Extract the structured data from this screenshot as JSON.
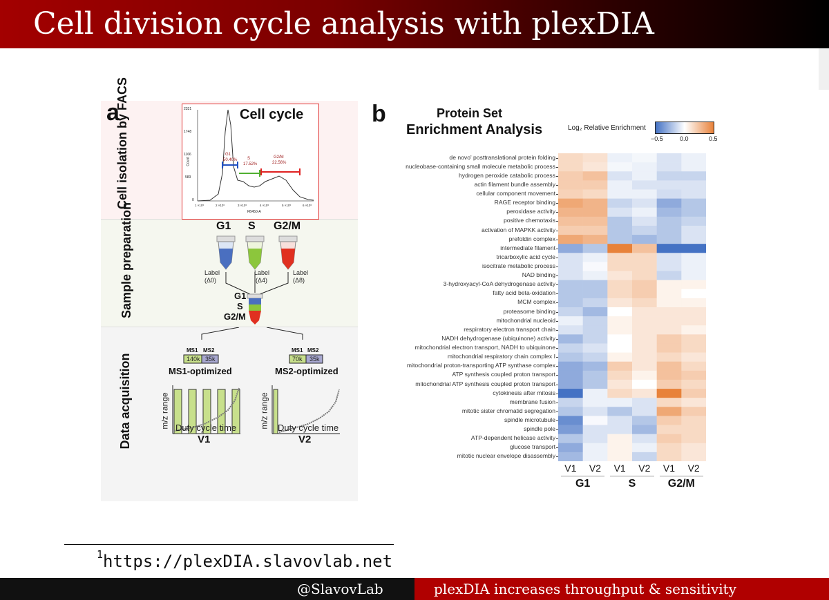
{
  "slide": {
    "title": "Cell division cycle analysis with plexDIA",
    "footnote_marker": "1",
    "footnote": "https://plexDIA.slavovlab.net",
    "footer_left": "@SlavovLab",
    "footer_right": "plexDIA increases throughput & sensitivity"
  },
  "panel_a": {
    "letter": "a",
    "sections": [
      "Cell isolation by FACS",
      "Sample preparation",
      "Data acquisition"
    ],
    "facs": {
      "title": "Cell cycle",
      "y_ticks": [
        "2331",
        "1748",
        "1166",
        "583",
        "0"
      ],
      "x_ticks": [
        "1 ×10⁵",
        "2 ×10⁵",
        "3 ×10⁵",
        "4 ×10⁵",
        "5 ×10⁵",
        "6 ×10⁵"
      ],
      "y_label": "Count",
      "x_label": "FB450-A",
      "gates": [
        {
          "name": "G1",
          "pct": "50.40%"
        },
        {
          "name": "S",
          "pct": "17.52%"
        },
        {
          "name": "G2/M",
          "pct": "22.56%"
        }
      ]
    },
    "prep": {
      "phases": [
        "G1",
        "S",
        "G2/M"
      ],
      "labels": [
        {
          "text": "Label",
          "delta": "(Δ0)"
        },
        {
          "text": "Label",
          "delta": "(Δ4)"
        },
        {
          "text": "Label",
          "delta": "(Δ8)"
        }
      ],
      "pooled": [
        "G1",
        "S",
        "G2/M"
      ]
    },
    "acq": [
      {
        "ms1": "MS1",
        "ms2": "MS2",
        "ms1_res": "140k",
        "ms2_res": "35k",
        "name": "MS1-optimized",
        "ylabel": "m/z range",
        "xlabel": "Duty cycle time",
        "version": "V1"
      },
      {
        "ms1": "MS1",
        "ms2": "MS2",
        "ms1_res": "70k",
        "ms2_res": "35k",
        "name": "MS2-optimized",
        "ylabel": "m/z range",
        "xlabel": "Duty cycle time",
        "version": "V2"
      }
    ]
  },
  "panel_b": {
    "letter": "b",
    "title_line1": "Protein Set",
    "title_line2": "Enrichment Analysis",
    "legend_title": "Log₂ Relative Enrichment",
    "legend_ticks": [
      "−0.5",
      "0.0",
      "0.5"
    ]
  },
  "colors": {
    "blue": "#4472c4",
    "white": "#ffffff",
    "orange": "#e8823a",
    "green": "#9ccc3c",
    "red": "#e03020"
  },
  "chart_data": {
    "type": "heatmap",
    "title": "Protein Set Enrichment Analysis",
    "legend": "Log2 Relative Enrichment",
    "range": [
      -0.5,
      0.5
    ],
    "columns": [
      "V1",
      "V2",
      "V1",
      "V2",
      "V1",
      "V2"
    ],
    "groups": [
      "G1",
      "S",
      "G2/M"
    ],
    "rows": [
      "de novo' posttranslational protein folding",
      "nucleobase-containing small molecule metabolic process",
      "hydrogen peroxide catabolic process",
      "actin filament bundle assembly",
      "cellular component movement",
      "RAGE receptor binding",
      "peroxidase activity",
      "positive chemotaxis",
      "activation of MAPKK activity",
      "prefoldin complex",
      "intermediate filament",
      "tricarboxylic acid cycle",
      "isocitrate metabolic process",
      "NAD binding",
      "3-hydroxyacyl-CoA dehydrogenase activity",
      "fatty acid beta-oxidation",
      "MCM complex",
      "proteasome binding",
      "mitochondrial nucleoid",
      "respiratory electron transport chain",
      "NADH dehydrogenase (ubiquinone) activity",
      "mitochondrial electron transport, NADH to ubiquinone",
      "mitochondrial respiratory chain complex I",
      "mitochondrial proton-transporting ATP synthase complex",
      "ATP synthesis coupled proton transport",
      "mitochondrial ATP synthesis coupled proton transport",
      "cytokinesis after mitosis",
      "membrane fusion",
      "mitotic sister chromatid segregation",
      "spindle microtubule",
      "spindle pole",
      "ATP-dependent helicase activity",
      "glucose transport",
      "mitotic nuclear envelope disassembly"
    ],
    "values": [
      [
        0.15,
        0.12,
        -0.05,
        -0.03,
        -0.1,
        -0.05
      ],
      [
        0.15,
        0.1,
        -0.03,
        -0.05,
        -0.1,
        -0.05
      ],
      [
        0.2,
        0.25,
        -0.1,
        -0.05,
        -0.15,
        -0.15
      ],
      [
        0.2,
        0.2,
        -0.05,
        -0.1,
        -0.1,
        -0.1
      ],
      [
        0.18,
        0.15,
        -0.05,
        -0.05,
        -0.12,
        -0.1
      ],
      [
        0.35,
        0.3,
        -0.15,
        -0.1,
        -0.3,
        -0.2
      ],
      [
        0.3,
        0.3,
        -0.1,
        -0.05,
        -0.25,
        -0.2
      ],
      [
        0.25,
        0.25,
        -0.2,
        -0.1,
        -0.2,
        -0.15
      ],
      [
        0.2,
        0.2,
        -0.2,
        -0.15,
        -0.2,
        -0.1
      ],
      [
        0.35,
        0.3,
        -0.2,
        -0.25,
        -0.2,
        -0.1
      ],
      [
        -0.3,
        -0.2,
        0.5,
        0.25,
        -0.6,
        -0.6
      ],
      [
        -0.1,
        -0.05,
        0.15,
        0.15,
        -0.1,
        -0.05
      ],
      [
        -0.1,
        -0.02,
        0.15,
        0.15,
        -0.1,
        -0.05
      ],
      [
        -0.1,
        -0.05,
        0.1,
        0.15,
        -0.15,
        -0.05
      ],
      [
        -0.2,
        -0.2,
        0.15,
        0.2,
        0.05,
        0.05
      ],
      [
        -0.2,
        -0.2,
        0.15,
        0.2,
        0.05,
        0.0
      ],
      [
        -0.2,
        -0.15,
        0.1,
        0.15,
        0.05,
        0.05
      ],
      [
        -0.15,
        -0.25,
        0.0,
        0.1,
        0.1,
        0.1
      ],
      [
        -0.05,
        -0.15,
        0.05,
        0.1,
        0.1,
        0.1
      ],
      [
        -0.1,
        -0.15,
        0.05,
        0.1,
        0.1,
        0.05
      ],
      [
        -0.25,
        -0.15,
        0.0,
        0.1,
        0.2,
        0.15
      ],
      [
        -0.15,
        -0.1,
        0.0,
        0.1,
        0.2,
        0.15
      ],
      [
        -0.2,
        -0.15,
        0.05,
        0.1,
        0.15,
        0.1
      ],
      [
        -0.3,
        -0.25,
        0.2,
        0.1,
        0.25,
        0.15
      ],
      [
        -0.3,
        -0.2,
        0.15,
        0.05,
        0.25,
        0.2
      ],
      [
        -0.3,
        -0.2,
        0.1,
        0.0,
        0.2,
        0.15
      ],
      [
        -0.55,
        -0.05,
        0.15,
        0.1,
        0.5,
        0.2
      ],
      [
        -0.15,
        -0.05,
        -0.05,
        -0.1,
        0.15,
        0.1
      ],
      [
        -0.2,
        -0.1,
        -0.2,
        -0.1,
        0.35,
        0.2
      ],
      [
        -0.4,
        -0.02,
        -0.1,
        -0.2,
        0.2,
        0.15
      ],
      [
        -0.35,
        -0.1,
        -0.1,
        -0.25,
        0.15,
        0.15
      ],
      [
        -0.2,
        -0.1,
        0.05,
        -0.1,
        0.2,
        0.15
      ],
      [
        -0.3,
        -0.05,
        0.05,
        -0.05,
        0.15,
        0.1
      ],
      [
        -0.25,
        -0.05,
        0.05,
        -0.15,
        0.15,
        0.1
      ]
    ]
  }
}
